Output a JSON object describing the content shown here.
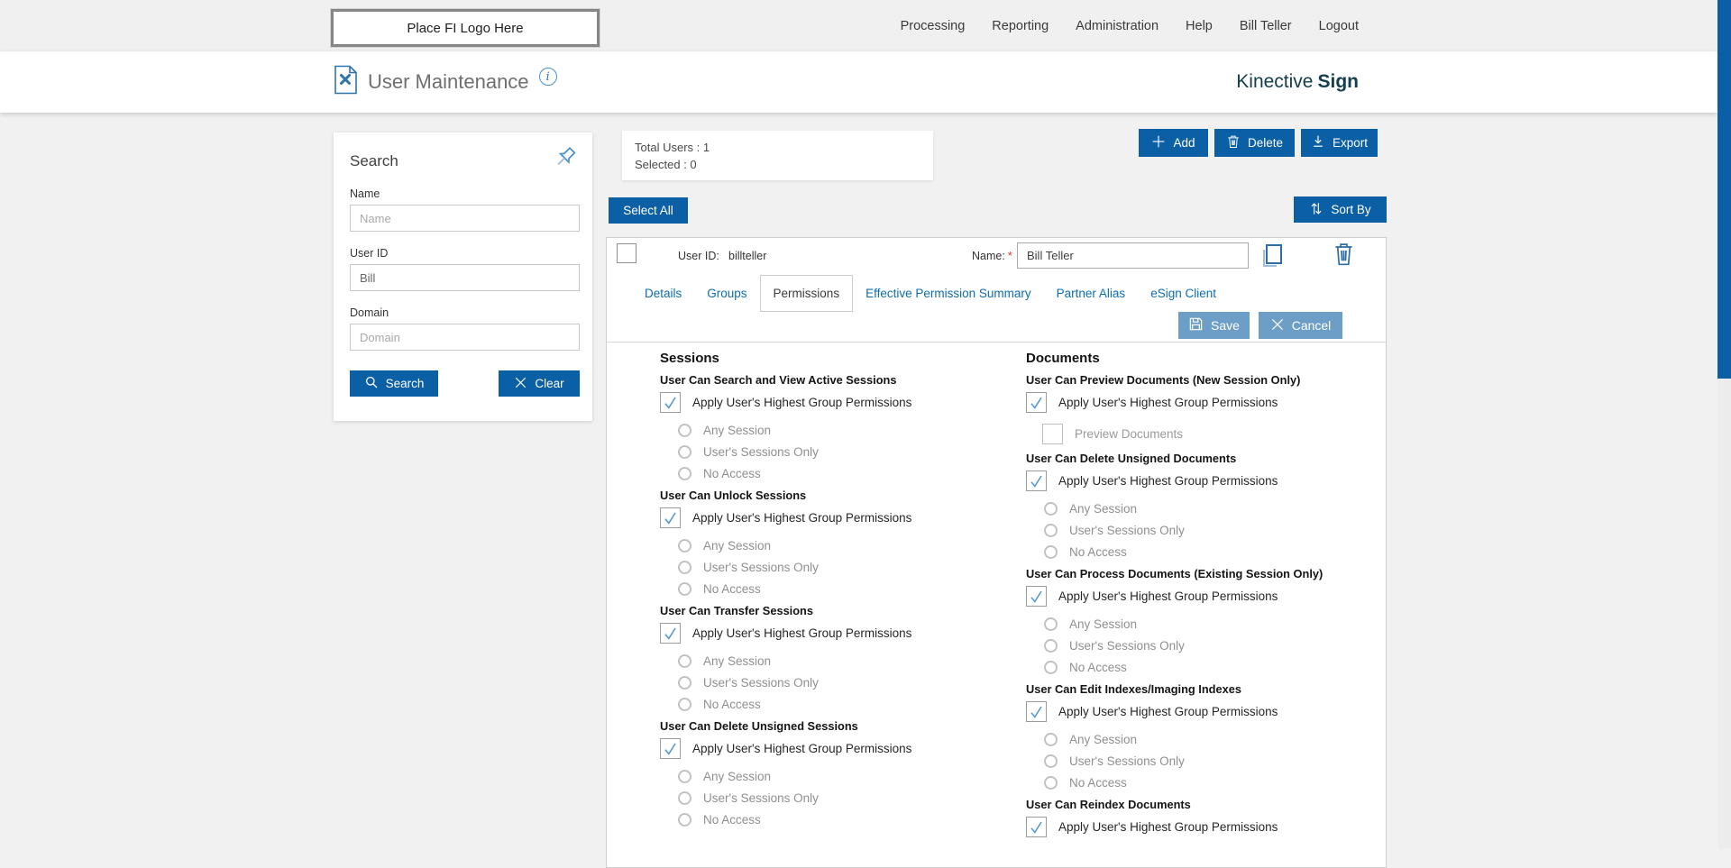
{
  "topbar": {
    "logo_placeholder": "Place FI Logo Here",
    "nav_items": [
      "Processing",
      "Reporting",
      "Administration",
      "Help",
      "Bill Teller",
      "Logout"
    ]
  },
  "header": {
    "title": "User Maintenance",
    "info_glyph": "i",
    "brand_name": "Kinective",
    "brand_product": "Sign"
  },
  "search_panel": {
    "title": "Search",
    "fields": [
      {
        "label": "Name",
        "placeholder": "Name",
        "value": ""
      },
      {
        "label": "User ID",
        "placeholder": "",
        "value": "Bill"
      },
      {
        "label": "Domain",
        "placeholder": "Domain",
        "value": ""
      }
    ],
    "search_button": "Search",
    "clear_button": "Clear"
  },
  "summary": {
    "total_users": "Total Users : 1",
    "selected": "Selected : 0"
  },
  "toolbar": {
    "add": "Add",
    "delete": "Delete",
    "export": "Export",
    "select_all": "Select All",
    "sort_by": "Sort By"
  },
  "user_row": {
    "checkbox_checked": false,
    "user_id_label": "User ID:",
    "user_id_value": "billteller",
    "name_label": "Name:",
    "required_mark": "*",
    "name_value": "Bill Teller"
  },
  "tabs": [
    {
      "label": "Details",
      "active": false
    },
    {
      "label": "Groups",
      "active": false
    },
    {
      "label": "Permissions",
      "active": true
    },
    {
      "label": "Effective Permission Summary",
      "active": false
    },
    {
      "label": "Partner Alias",
      "active": false
    },
    {
      "label": "eSign Client",
      "active": false
    }
  ],
  "actions": {
    "save": "Save",
    "cancel": "Cancel"
  },
  "permissions": {
    "apply_label": "Apply User's Highest Group Permissions",
    "columns": [
      {
        "heading": "Sessions",
        "groups": [
          {
            "title": "User Can Search and View Active Sessions",
            "apply_checked": true,
            "radios": [
              {
                "label": "Any Session",
                "selected": false
              },
              {
                "label": "User's Sessions Only",
                "selected": false
              },
              {
                "label": "No Access",
                "selected": false
              }
            ]
          },
          {
            "title": "User Can Unlock Sessions",
            "apply_checked": true,
            "radios": [
              {
                "label": "Any Session",
                "selected": false
              },
              {
                "label": "User's Sessions Only",
                "selected": false
              },
              {
                "label": "No Access",
                "selected": false
              }
            ]
          },
          {
            "title": "User Can Transfer Sessions",
            "apply_checked": true,
            "radios": [
              {
                "label": "Any Session",
                "selected": false
              },
              {
                "label": "User's Sessions Only",
                "selected": false
              },
              {
                "label": "No Access",
                "selected": false
              }
            ]
          },
          {
            "title": "User Can Delete Unsigned Sessions",
            "apply_checked": true,
            "radios": [
              {
                "label": "Any Session",
                "selected": false
              },
              {
                "label": "User's Sessions Only",
                "selected": false
              },
              {
                "label": "No Access",
                "selected": false
              }
            ]
          }
        ]
      },
      {
        "heading": "Documents",
        "groups": [
          {
            "title": "User Can Preview Documents (New Session Only)",
            "apply_checked": true,
            "sub_checkboxes": [
              {
                "label": "Preview Documents",
                "checked": false
              }
            ]
          },
          {
            "title": "User Can Delete Unsigned Documents",
            "apply_checked": true,
            "radios": [
              {
                "label": "Any Session",
                "selected": false
              },
              {
                "label": "User's Sessions Only",
                "selected": false
              },
              {
                "label": "No Access",
                "selected": false
              }
            ]
          },
          {
            "title": "User Can Process Documents (Existing Session Only)",
            "apply_checked": true,
            "radios": [
              {
                "label": "Any Session",
                "selected": false
              },
              {
                "label": "User's Sessions Only",
                "selected": false
              },
              {
                "label": "No Access",
                "selected": false
              }
            ]
          },
          {
            "title": "User Can Edit Indexes/Imaging Indexes",
            "apply_checked": true,
            "radios": [
              {
                "label": "Any Session",
                "selected": false
              },
              {
                "label": "User's Sessions Only",
                "selected": false
              },
              {
                "label": "No Access",
                "selected": false
              }
            ]
          },
          {
            "title": "User Can Reindex Documents",
            "apply_checked": true
          }
        ]
      }
    ]
  },
  "colors": {
    "primary_blue": "#0b5fa5",
    "steel_blue": "#6d9ec7",
    "link_blue": "#0e6cb0",
    "check_blue": "#4f97cf",
    "brand_dark": "#14404c",
    "page_background": "#f1f1f1"
  }
}
